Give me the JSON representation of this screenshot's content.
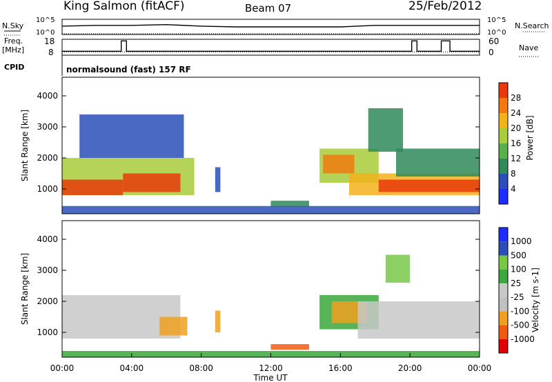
{
  "header": {
    "station": "King Salmon (fitACF)",
    "beam": "Beam 07",
    "date": "25/Feb/2012"
  },
  "colors": {
    "power": [
      "#1f2cff",
      "#2a4fb8",
      "#2f8a5a",
      "#58b04a",
      "#a8cc3a",
      "#f2b21a",
      "#f07a10",
      "#e83a0a",
      "#e00000"
    ],
    "velocity": [
      "#e00000",
      "#f05a10",
      "#f0a020",
      "#c0c0c0",
      "#c8c8c8",
      "#3aa83a",
      "#78c848",
      "#2a4fb8",
      "#1f2cff"
    ]
  },
  "chart_data": [
    {
      "type": "line",
      "panel": "nsky-nsearch",
      "left_label": "N.Sky",
      "right_label": "N.Search",
      "left_ticks": [
        "10^5",
        "10^0"
      ],
      "right_ticks": [
        "10^5",
        "10^0"
      ],
      "x_range_hours": [
        0,
        24
      ],
      "series": [
        {
          "style": "solid",
          "x": [
            0,
            2,
            4,
            6,
            8,
            10,
            12,
            14,
            16,
            18,
            20,
            22,
            24
          ],
          "values": [
            0.55,
            0.6,
            0.6,
            0.65,
            0.55,
            0.5,
            0.5,
            0.5,
            0.5,
            0.6,
            0.6,
            0.6,
            0.6
          ]
        },
        {
          "style": "dotted",
          "x": [
            0,
            4,
            8,
            12,
            16,
            20,
            24
          ],
          "values": [
            0.05,
            0.05,
            0.05,
            0.05,
            0.05,
            0.05,
            0.05
          ]
        }
      ]
    },
    {
      "type": "line",
      "panel": "freq-nave",
      "left_label": "Freq.",
      "left_unit": "[MHz]",
      "right_label": "Nave",
      "left_ticks": [
        "18",
        "8"
      ],
      "right_ticks": [
        "60",
        "0"
      ],
      "x_range_hours": [
        0,
        24
      ],
      "ylim": [
        8,
        18
      ],
      "series": [
        {
          "style": "solid",
          "x": [
            0,
            3.4,
            3.4,
            3.7,
            3.7,
            20.1,
            20.1,
            20.4,
            20.4,
            21.8,
            21.8,
            22.3,
            22.3,
            24
          ],
          "values": [
            10.5,
            10.5,
            17,
            17,
            10.5,
            10.5,
            17,
            17,
            10.5,
            10.5,
            17,
            17,
            10.5,
            10.5
          ]
        },
        {
          "style": "dotted",
          "x": [
            0,
            24
          ],
          "values": [
            10,
            10
          ]
        }
      ]
    },
    {
      "type": "table",
      "panel": "cpid",
      "label": "CPID",
      "text": "normalsound (fast) 157 RF"
    },
    {
      "type": "heatmap",
      "panel": "power",
      "ylabel": "Slant Range [km]",
      "yticks": [
        1000,
        2000,
        3000,
        4000
      ],
      "ylim": [
        200,
        4600
      ],
      "x_range_hours": [
        0,
        24
      ],
      "colorbar_label": "Power [dB]",
      "colorbar_ticks": [
        4,
        8,
        12,
        16,
        20,
        24,
        28
      ],
      "colorbar_range": [
        0,
        32
      ],
      "regions": [
        {
          "x0": 0,
          "x1": 7.6,
          "y0": 800,
          "y1": 2000,
          "value": 16
        },
        {
          "x0": 0,
          "x1": 3.5,
          "y0": 800,
          "y1": 1300,
          "value": 27
        },
        {
          "x0": 3.5,
          "x1": 6.8,
          "y0": 900,
          "y1": 1500,
          "value": 26
        },
        {
          "x0": 1,
          "x1": 7,
          "y0": 2000,
          "y1": 3400,
          "value": 6
        },
        {
          "x0": 8.8,
          "x1": 9.1,
          "y0": 900,
          "y1": 1700,
          "value": 6
        },
        {
          "x0": 12.0,
          "x1": 14.2,
          "y0": 430,
          "y1": 620,
          "value": 8
        },
        {
          "x0": 14.8,
          "x1": 18.2,
          "y0": 1200,
          "y1": 2300,
          "value": 16
        },
        {
          "x0": 15.0,
          "x1": 16.8,
          "y0": 1500,
          "y1": 2100,
          "value": 24
        },
        {
          "x0": 16.5,
          "x1": 24,
          "y0": 800,
          "y1": 1500,
          "value": 20
        },
        {
          "x0": 18.2,
          "x1": 24,
          "y0": 900,
          "y1": 1300,
          "value": 27
        },
        {
          "x0": 17.6,
          "x1": 19.6,
          "y0": 2200,
          "y1": 3600,
          "value": 8
        },
        {
          "x0": 19.2,
          "x1": 24,
          "y0": 1400,
          "y1": 2300,
          "value": 10
        },
        {
          "x0": 0,
          "x1": 24,
          "y0": 200,
          "y1": 450,
          "value": 6
        }
      ]
    },
    {
      "type": "heatmap",
      "panel": "velocity",
      "ylabel": "Slant Range [km]",
      "yticks": [
        1000,
        2000,
        3000,
        4000
      ],
      "ylim": [
        200,
        4600
      ],
      "x_range_hours": [
        0,
        24
      ],
      "xlabel": "Time UT",
      "xticks": [
        "00:00",
        "04:00",
        "08:00",
        "12:00",
        "16:00",
        "20:00",
        "00:00"
      ],
      "colorbar_label": "Velocity [m s-1]",
      "colorbar_ticks": [
        -1000,
        -500,
        -100,
        -25,
        25,
        100,
        500,
        1000
      ],
      "regions": [
        {
          "x0": 0,
          "x1": 6.8,
          "y0": 800,
          "y1": 2200,
          "value": 0
        },
        {
          "x0": 5.6,
          "x1": 7.2,
          "y0": 900,
          "y1": 1500,
          "value": -300
        },
        {
          "x0": 8.8,
          "x1": 9.1,
          "y0": 1000,
          "y1": 1700,
          "value": -400
        },
        {
          "x0": 12.0,
          "x1": 14.2,
          "y0": 440,
          "y1": 620,
          "value": -600
        },
        {
          "x0": 14.8,
          "x1": 18.2,
          "y0": 1100,
          "y1": 2200,
          "value": 80
        },
        {
          "x0": 15.5,
          "x1": 17.5,
          "y0": 1300,
          "y1": 2000,
          "value": -150
        },
        {
          "x0": 17.0,
          "x1": 24,
          "y0": 800,
          "y1": 2000,
          "value": 0
        },
        {
          "x0": 18.6,
          "x1": 20.0,
          "y0": 2600,
          "y1": 3500,
          "value": 300
        },
        {
          "x0": 0,
          "x1": 24,
          "y0": 200,
          "y1": 400,
          "value": 60
        }
      ]
    }
  ]
}
